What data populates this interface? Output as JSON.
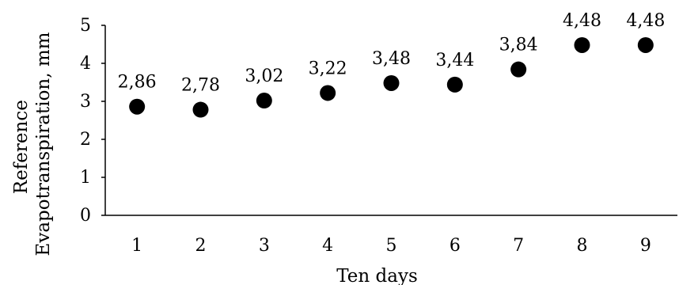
{
  "chart_data": {
    "type": "scatter",
    "x": [
      1,
      2,
      3,
      4,
      5,
      6,
      7,
      8,
      9
    ],
    "y": [
      2.86,
      2.78,
      3.02,
      3.22,
      3.48,
      3.44,
      3.84,
      4.48,
      4.48
    ],
    "data_labels": [
      "2,86",
      "2,78",
      "3,02",
      "3,22",
      "3,48",
      "3,44",
      "3,84",
      "4,48",
      "4,48"
    ],
    "x_ticks": [
      "1",
      "2",
      "3",
      "4",
      "5",
      "6",
      "7",
      "8",
      "9"
    ],
    "y_ticks": [
      "0",
      "1",
      "2",
      "3",
      "4",
      "5"
    ],
    "xlabel": "Ten days",
    "ylabel_lines": [
      "Reference",
      "Evapotranspiration, mm"
    ],
    "xlim": [
      0.5,
      9.5
    ],
    "ylim": [
      0,
      5
    ],
    "grid": false,
    "marker_color": "#000000"
  }
}
